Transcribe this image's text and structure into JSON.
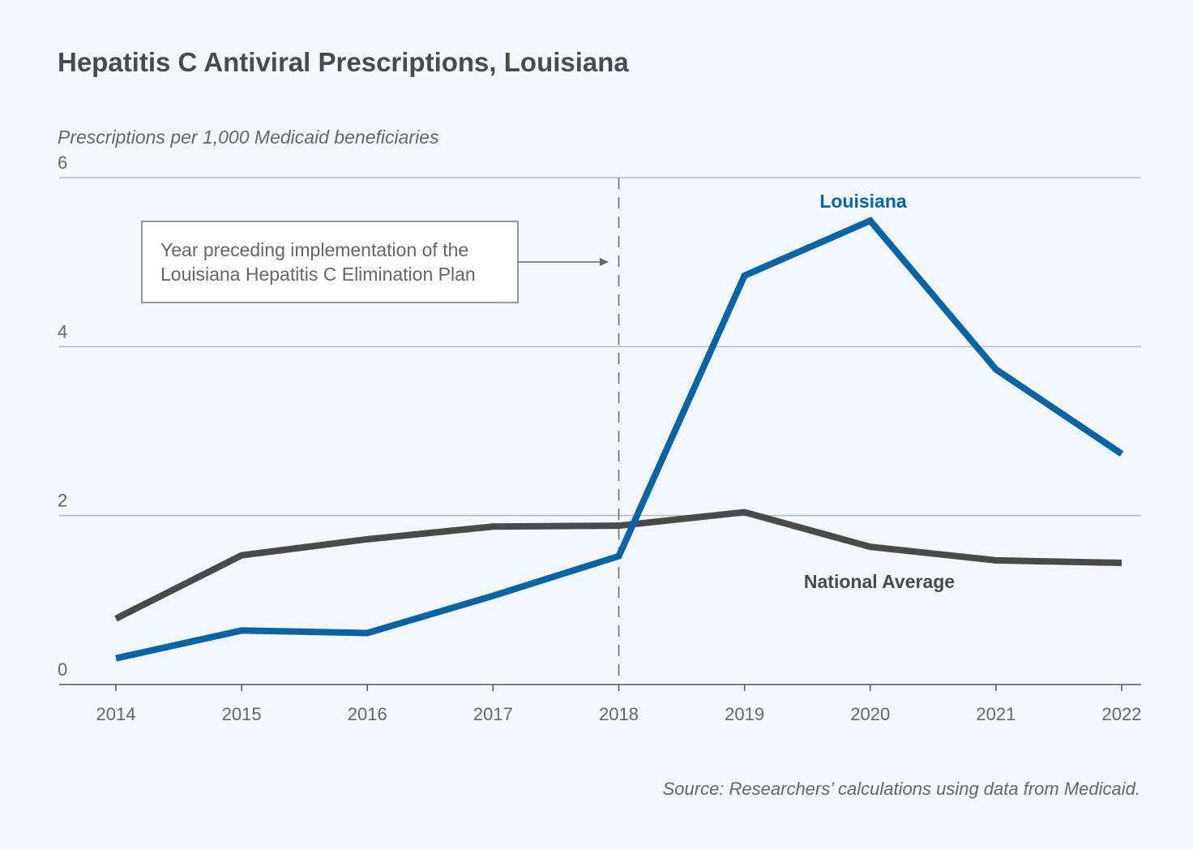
{
  "chart_data": {
    "type": "line",
    "title": "Hepatitis C Antiviral Prescriptions, Louisiana",
    "ylabel": "Prescriptions per 1,000 Medicaid beneficiaries",
    "xlabel": "",
    "x": [
      2014,
      2015,
      2016,
      2017,
      2018,
      2019,
      2020,
      2021,
      2022
    ],
    "ylim": [
      0,
      6
    ],
    "yticks": [
      0,
      2,
      4,
      6
    ],
    "grid": true,
    "series": [
      {
        "name": "Louisiana",
        "color": "#0a64a4",
        "values": [
          0.31,
          0.64,
          0.61,
          1.05,
          1.52,
          4.84,
          5.49,
          3.73,
          2.73
        ]
      },
      {
        "name": "National Average",
        "color": "#4a4a4a",
        "values": [
          0.78,
          1.53,
          1.72,
          1.87,
          1.88,
          2.04,
          1.63,
          1.47,
          1.44
        ]
      }
    ],
    "annotation": {
      "x": 2018,
      "lines": [
        "Year preceding implementation of the",
        "Louisiana Hepatitis C Elimination Plan"
      ]
    },
    "source": "Source: Researchers’ calculations using data from Medicaid."
  }
}
